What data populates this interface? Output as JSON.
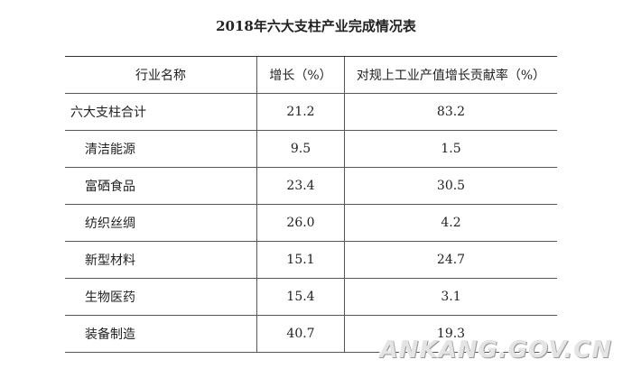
{
  "title": "2018年六大支柱产业完成情况表",
  "table": {
    "header": [
      "行业名称",
      "增长（%）",
      "对规上工业产值增长贡献率（%）"
    ],
    "rows": [
      [
        "六大支柱合计",
        "21.2",
        "83.2"
      ],
      [
        "清洁能源",
        "9.5",
        "1.5"
      ],
      [
        "富硒食品",
        "23.4",
        "30.5"
      ],
      [
        "纺织丝绸",
        "26.0",
        "4.2"
      ],
      [
        "新型材料",
        "15.1",
        "24.7"
      ],
      [
        "生物医药",
        "15.4",
        "3.1"
      ],
      [
        "装备制造",
        "40.7",
        "19.3"
      ]
    ]
  },
  "watermark": "ANKANG.GOV.CN"
}
